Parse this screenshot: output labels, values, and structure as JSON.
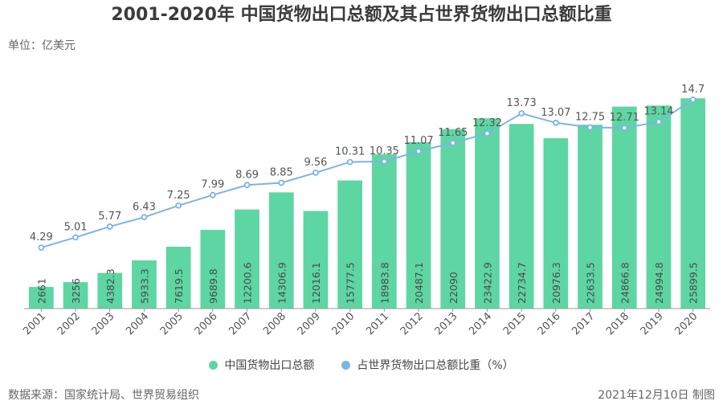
{
  "header": {
    "title": "2001-2020年 中国货物出口总额及其占世界货物出口总额比重",
    "unit": "单位：亿美元"
  },
  "footer": {
    "source": "数据来源：国家统计局、世界贸易组织",
    "credit": "2021年12月10日 制图"
  },
  "colors": {
    "bar": "#5dd6a3",
    "line": "#7cb4e6",
    "point_fill": "#ffffff",
    "axis": "#999999"
  },
  "chart_data": {
    "type": "bar",
    "categories": [
      "2001",
      "2002",
      "2003",
      "2004",
      "2005",
      "2006",
      "2007",
      "2008",
      "2009",
      "2010",
      "2011",
      "2012",
      "2013",
      "2014",
      "2015",
      "2016",
      "2017",
      "2018",
      "2019",
      "2020"
    ],
    "series": [
      {
        "name": "中国货物出口总额",
        "type": "bar",
        "axis": "left",
        "values": [
          2661,
          3256,
          4382.3,
          5933.3,
          7619.5,
          9689.8,
          12200.6,
          14306.9,
          12016.1,
          15777.5,
          18983.8,
          20487.1,
          22090,
          23422.9,
          22734.7,
          20976.3,
          22633.5,
          24866.8,
          24994.8,
          25899.5
        ],
        "labels": [
          "2661",
          "3256",
          "4382.3",
          "5933.3",
          "7619.5",
          "9689.8",
          "12200.6",
          "14306.9",
          "12016.1",
          "15777.5",
          "18983.8",
          "20487.1",
          "22090",
          "23422.9",
          "22734.7",
          "20976.3",
          "22633.5",
          "24866.8",
          "24994.8",
          "25899.5"
        ]
      },
      {
        "name": "占世界货物出口总额比重（%）",
        "type": "line",
        "axis": "right",
        "values": [
          4.29,
          5.01,
          5.77,
          6.43,
          7.25,
          7.99,
          8.69,
          8.85,
          9.56,
          10.31,
          10.35,
          11.07,
          11.65,
          12.32,
          13.73,
          13.07,
          12.75,
          12.71,
          13.14,
          14.7
        ],
        "labels": [
          "4.29",
          "5.01",
          "5.77",
          "6.43",
          "7.25",
          "7.99",
          "8.69",
          "8.85",
          "9.56",
          "10.31",
          "10.35",
          "11.07",
          "11.65",
          "12.32",
          "13.73",
          "13.07",
          "12.75",
          "12.71",
          "13.14",
          "14.7"
        ]
      }
    ],
    "title": "2001-2020年 中国货物出口总额及其占世界货物出口总额比重",
    "ylabel": "单位：亿美元",
    "ylim": [
      0,
      28000
    ],
    "y2lim": [
      0,
      16
    ],
    "legend": "bottom",
    "grid": false
  }
}
